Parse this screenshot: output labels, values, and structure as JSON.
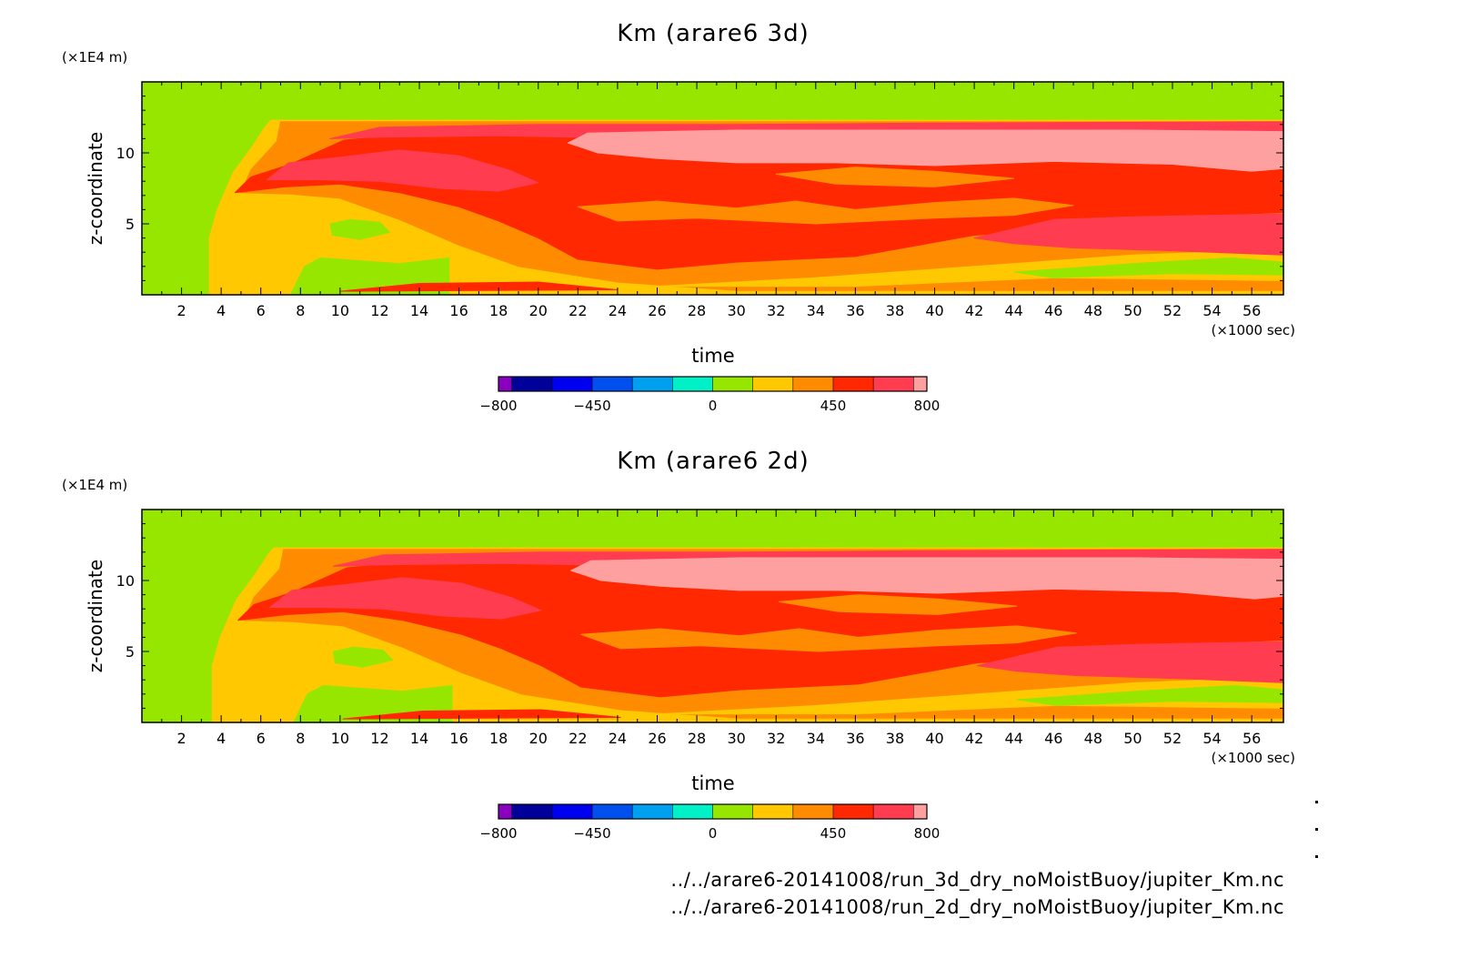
{
  "chart_data": [
    {
      "type": "heatmap",
      "title": "Km (arare6 3d)",
      "xlabel": "time",
      "ylabel": "z-coordinate",
      "x_unit": "(×1000 sec)",
      "y_unit": "(×1E4 m)",
      "xlim": [
        0,
        57.6
      ],
      "ylim": [
        0,
        15
      ],
      "x_ticks": [
        "2",
        "4",
        "6",
        "8",
        "10",
        "12",
        "14",
        "16",
        "18",
        "20",
        "22",
        "24",
        "26",
        "28",
        "30",
        "32",
        "34",
        "36",
        "38",
        "40",
        "42",
        "44",
        "46",
        "48",
        "50",
        "52",
        "54",
        "56"
      ],
      "y_ticks": [
        "5",
        "10"
      ],
      "colorbar": {
        "levels": [
          -800,
          -750,
          -600,
          -450,
          -300,
          -150,
          0,
          150,
          300,
          450,
          600,
          750,
          800
        ],
        "colors": [
          "#8a00c0",
          "#00009b",
          "#0000f0",
          "#0050f0",
          "#00a0f0",
          "#00f0c8",
          "#96e600",
          "#ffc800",
          "#ff8c00",
          "#ff2800",
          "#ff3c50",
          "#ffa0a0"
        ],
        "tick_labels": [
          "−800",
          "−450",
          "0",
          "450",
          "800"
        ],
        "tick_values": [
          -800,
          -450,
          0,
          450,
          800
        ]
      }
    },
    {
      "type": "heatmap",
      "title": "Km (arare6 2d)",
      "xlabel": "time",
      "ylabel": "z-coordinate",
      "x_unit": "(×1000 sec)",
      "y_unit": "(×1E4 m)",
      "xlim": [
        0,
        57.6
      ],
      "ylim": [
        0,
        15
      ],
      "x_ticks": [
        "2",
        "4",
        "6",
        "8",
        "10",
        "12",
        "14",
        "16",
        "18",
        "20",
        "22",
        "24",
        "26",
        "28",
        "30",
        "32",
        "34",
        "36",
        "38",
        "40",
        "42",
        "44",
        "46",
        "48",
        "50",
        "52",
        "54",
        "56"
      ],
      "y_ticks": [
        "5",
        "10"
      ],
      "colorbar": {
        "levels": [
          -800,
          -750,
          -600,
          -450,
          -300,
          -150,
          0,
          150,
          300,
          450,
          600,
          750,
          800
        ],
        "colors": [
          "#8a00c0",
          "#00009b",
          "#0000f0",
          "#0050f0",
          "#00a0f0",
          "#00f0c8",
          "#96e600",
          "#ffc800",
          "#ff8c00",
          "#ff2800",
          "#ff3c50",
          "#ffa0a0"
        ],
        "tick_labels": [
          "−800",
          "−450",
          "0",
          "450",
          "800"
        ],
        "tick_values": [
          -800,
          -450,
          0,
          450,
          800
        ]
      }
    }
  ],
  "footer": {
    "source_3d": "../../arare6-20141008/run_3d_dry_noMoistBuoy/jupiter_Km.nc",
    "source_2d": "../../arare6-20141008/run_2d_dry_noMoistBuoy/jupiter_Km.nc"
  }
}
